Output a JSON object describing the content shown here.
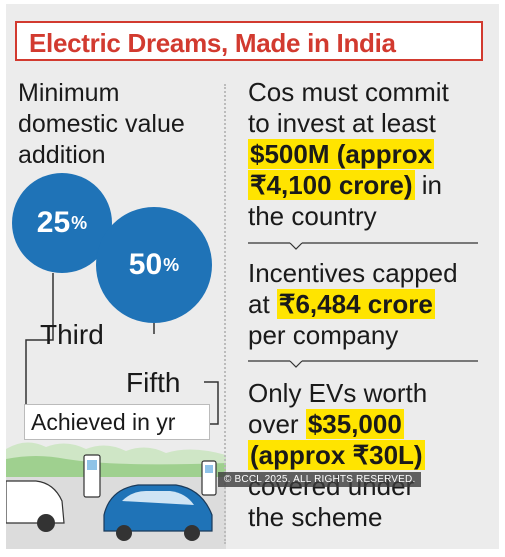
{
  "title": "Electric Dreams, Made in India",
  "left": {
    "heading_lines": [
      "Minimum",
      "domestic value",
      "addition"
    ],
    "circles": [
      {
        "value": "25",
        "unit": "%",
        "label": "Third"
      },
      {
        "value": "50",
        "unit": "%",
        "label": "Fifth"
      }
    ],
    "achieved_label": "Achieved in yr"
  },
  "right": {
    "block1": {
      "line1": "Cos must commit",
      "line2": "to invest at least",
      "hl1": "$500M (approx",
      "hl2": "₹4,100 crore)",
      "after_hl2": " in",
      "line_last": "the country"
    },
    "block2": {
      "line1": "Incentives capped",
      "pre": "at ",
      "hl": "₹6,484 crore",
      "line_last": "per company"
    },
    "block3": {
      "line1": "Only EVs worth",
      "pre": "over ",
      "hl1": "$35,000",
      "hl2": "(approx ₹30L)",
      "line4": "covered under",
      "line5": "the scheme"
    }
  },
  "copyright": "© BCCL 2025. ALL RIGHTS RESERVED.",
  "colors": {
    "accent": "#d23a2f",
    "circle": "#1f73b7",
    "highlight": "#ffe400",
    "background": "#ececec"
  }
}
